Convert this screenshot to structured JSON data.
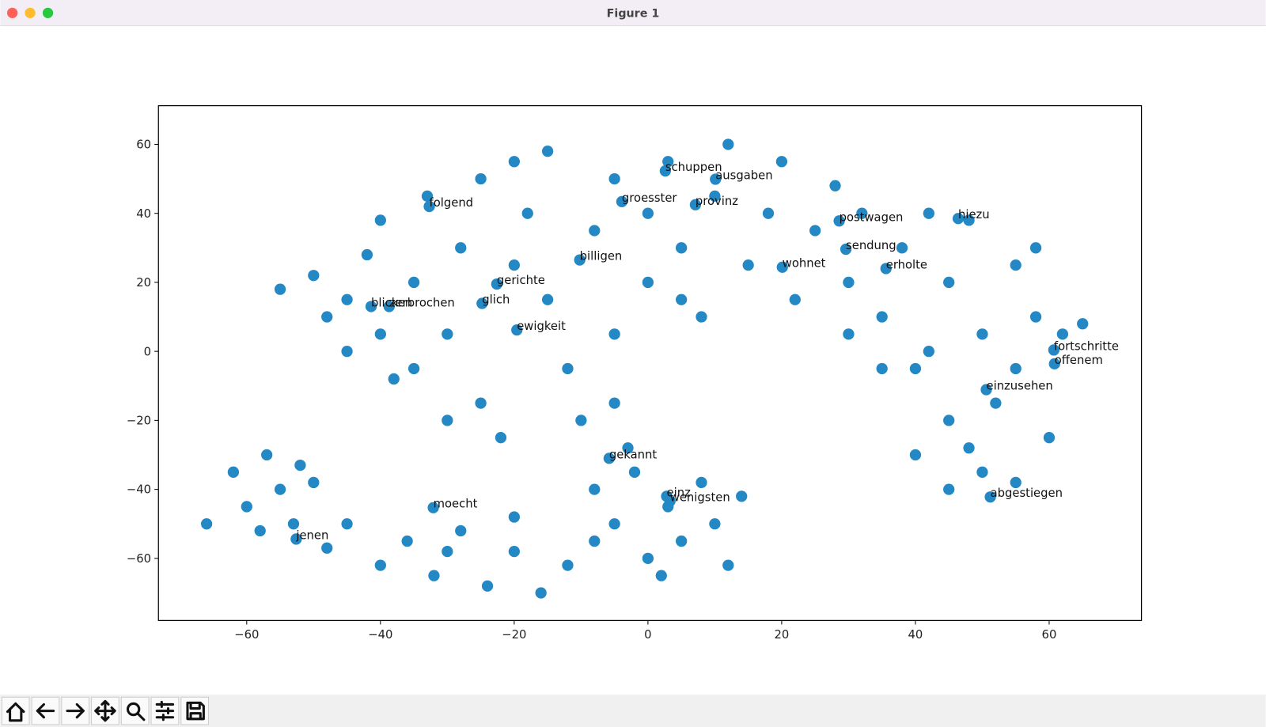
{
  "window_title": "Figure 1",
  "chart_data": {
    "type": "scatter",
    "color": "#2388c4",
    "xlim": [
      -73.2,
      73.8
    ],
    "ylim": [
      -78.0,
      71.2
    ],
    "xticks": [
      {
        "value": -60,
        "label": "−60"
      },
      {
        "value": -40,
        "label": "−40"
      },
      {
        "value": -20,
        "label": "−20"
      },
      0,
      20,
      40,
      60
    ],
    "yticks": [
      {
        "value": -60,
        "label": "−60"
      },
      {
        "value": -40,
        "label": "−40"
      },
      {
        "value": -20,
        "label": "−20"
      },
      0,
      20,
      40,
      60
    ],
    "x": [
      -55,
      -50,
      -48,
      -45,
      -42,
      -40,
      -38,
      -35,
      -33,
      -30,
      -28,
      -25,
      -22,
      -20,
      -18,
      -15,
      -12,
      -10,
      -25,
      -30,
      -35,
      -45,
      -40,
      -20,
      -15,
      -5,
      -5,
      -3,
      -8,
      -5,
      0,
      0,
      3,
      5,
      8,
      10,
      12,
      15,
      18,
      20,
      22,
      25,
      28,
      30,
      5,
      32,
      35,
      38,
      40,
      42,
      45,
      45,
      48,
      50,
      50,
      52,
      55,
      55,
      58,
      60,
      62,
      45,
      40,
      35,
      48,
      55,
      30,
      42,
      58,
      65,
      -8,
      -5,
      -2,
      0,
      3,
      5,
      8,
      10,
      12,
      14,
      2,
      -48,
      -45,
      -40,
      -36,
      -32,
      -28,
      -24,
      -20,
      -16,
      -12,
      -8,
      -30,
      -20,
      -66,
      -62,
      -60,
      -57,
      -55,
      -53,
      -50,
      -58,
      -52
    ],
    "y": [
      18,
      22,
      10,
      0,
      28,
      38,
      -8,
      20,
      45,
      5,
      30,
      -15,
      -25,
      55,
      40,
      15,
      -5,
      -20,
      50,
      -20,
      -5,
      15,
      5,
      25,
      58,
      -15,
      5,
      -28,
      35,
      50,
      20,
      40,
      55,
      30,
      10,
      45,
      60,
      25,
      40,
      55,
      15,
      35,
      48,
      20,
      15,
      40,
      10,
      30,
      -5,
      40,
      20,
      -20,
      38,
      5,
      -35,
      -15,
      25,
      -5,
      10,
      -25,
      5,
      -40,
      -30,
      -5,
      -28,
      -38,
      5,
      0,
      30,
      8,
      -40,
      -50,
      -35,
      -60,
      -45,
      -55,
      -38,
      -50,
      -62,
      -42,
      -65,
      -57,
      -50,
      -62,
      -55,
      -65,
      -52,
      -68,
      -58,
      -70,
      -62,
      -55,
      -58,
      -48,
      -50,
      -35,
      -45,
      -30,
      -40,
      -50,
      -38,
      -52,
      -33
    ],
    "annotations": [
      {
        "text": "schuppen",
        "x": 2.6,
        "y": 52.3
      },
      {
        "text": "ausgaben",
        "x": 10.1,
        "y": 49.9
      },
      {
        "text": "folgend",
        "x": -32.7,
        "y": 42.0
      },
      {
        "text": "groesster",
        "x": -3.9,
        "y": 43.4
      },
      {
        "text": "provinz",
        "x": 7.1,
        "y": 42.5
      },
      {
        "text": "postwagen",
        "x": 28.6,
        "y": 37.8
      },
      {
        "text": "hiezu",
        "x": 46.4,
        "y": 38.5
      },
      {
        "text": "sendung",
        "x": 29.6,
        "y": 29.6
      },
      {
        "text": "billigen",
        "x": -10.2,
        "y": 26.5
      },
      {
        "text": "wohnet",
        "x": 20.1,
        "y": 24.4
      },
      {
        "text": "erholte",
        "x": 35.6,
        "y": 24.0
      },
      {
        "text": "gerichte",
        "x": -22.6,
        "y": 19.5
      },
      {
        "text": "glich",
        "x": -24.8,
        "y": 13.9
      },
      {
        "text": "blicken",
        "x": -41.4,
        "y": 13.0
      },
      {
        "text": "zerbrochen",
        "x": -38.7,
        "y": 13.0
      },
      {
        "text": "ewigkeit",
        "x": -19.6,
        "y": 6.2
      },
      {
        "text": "fortschritte",
        "x": 60.7,
        "y": 0.4
      },
      {
        "text": "offenem",
        "x": 60.8,
        "y": -3.6
      },
      {
        "text": "einzusehen",
        "x": 50.6,
        "y": -11.1
      },
      {
        "text": "gekannt",
        "x": -5.8,
        "y": -31.0
      },
      {
        "text": "einz",
        "x": 2.8,
        "y": -42.0
      },
      {
        "text": "wenigsten",
        "x": 3.3,
        "y": -43.4
      },
      {
        "text": "moecht",
        "x": -32.1,
        "y": -45.3
      },
      {
        "text": "jenen",
        "x": -52.6,
        "y": -54.4
      },
      {
        "text": "abgestiegen",
        "x": 51.2,
        "y": -42.2
      }
    ]
  }
}
